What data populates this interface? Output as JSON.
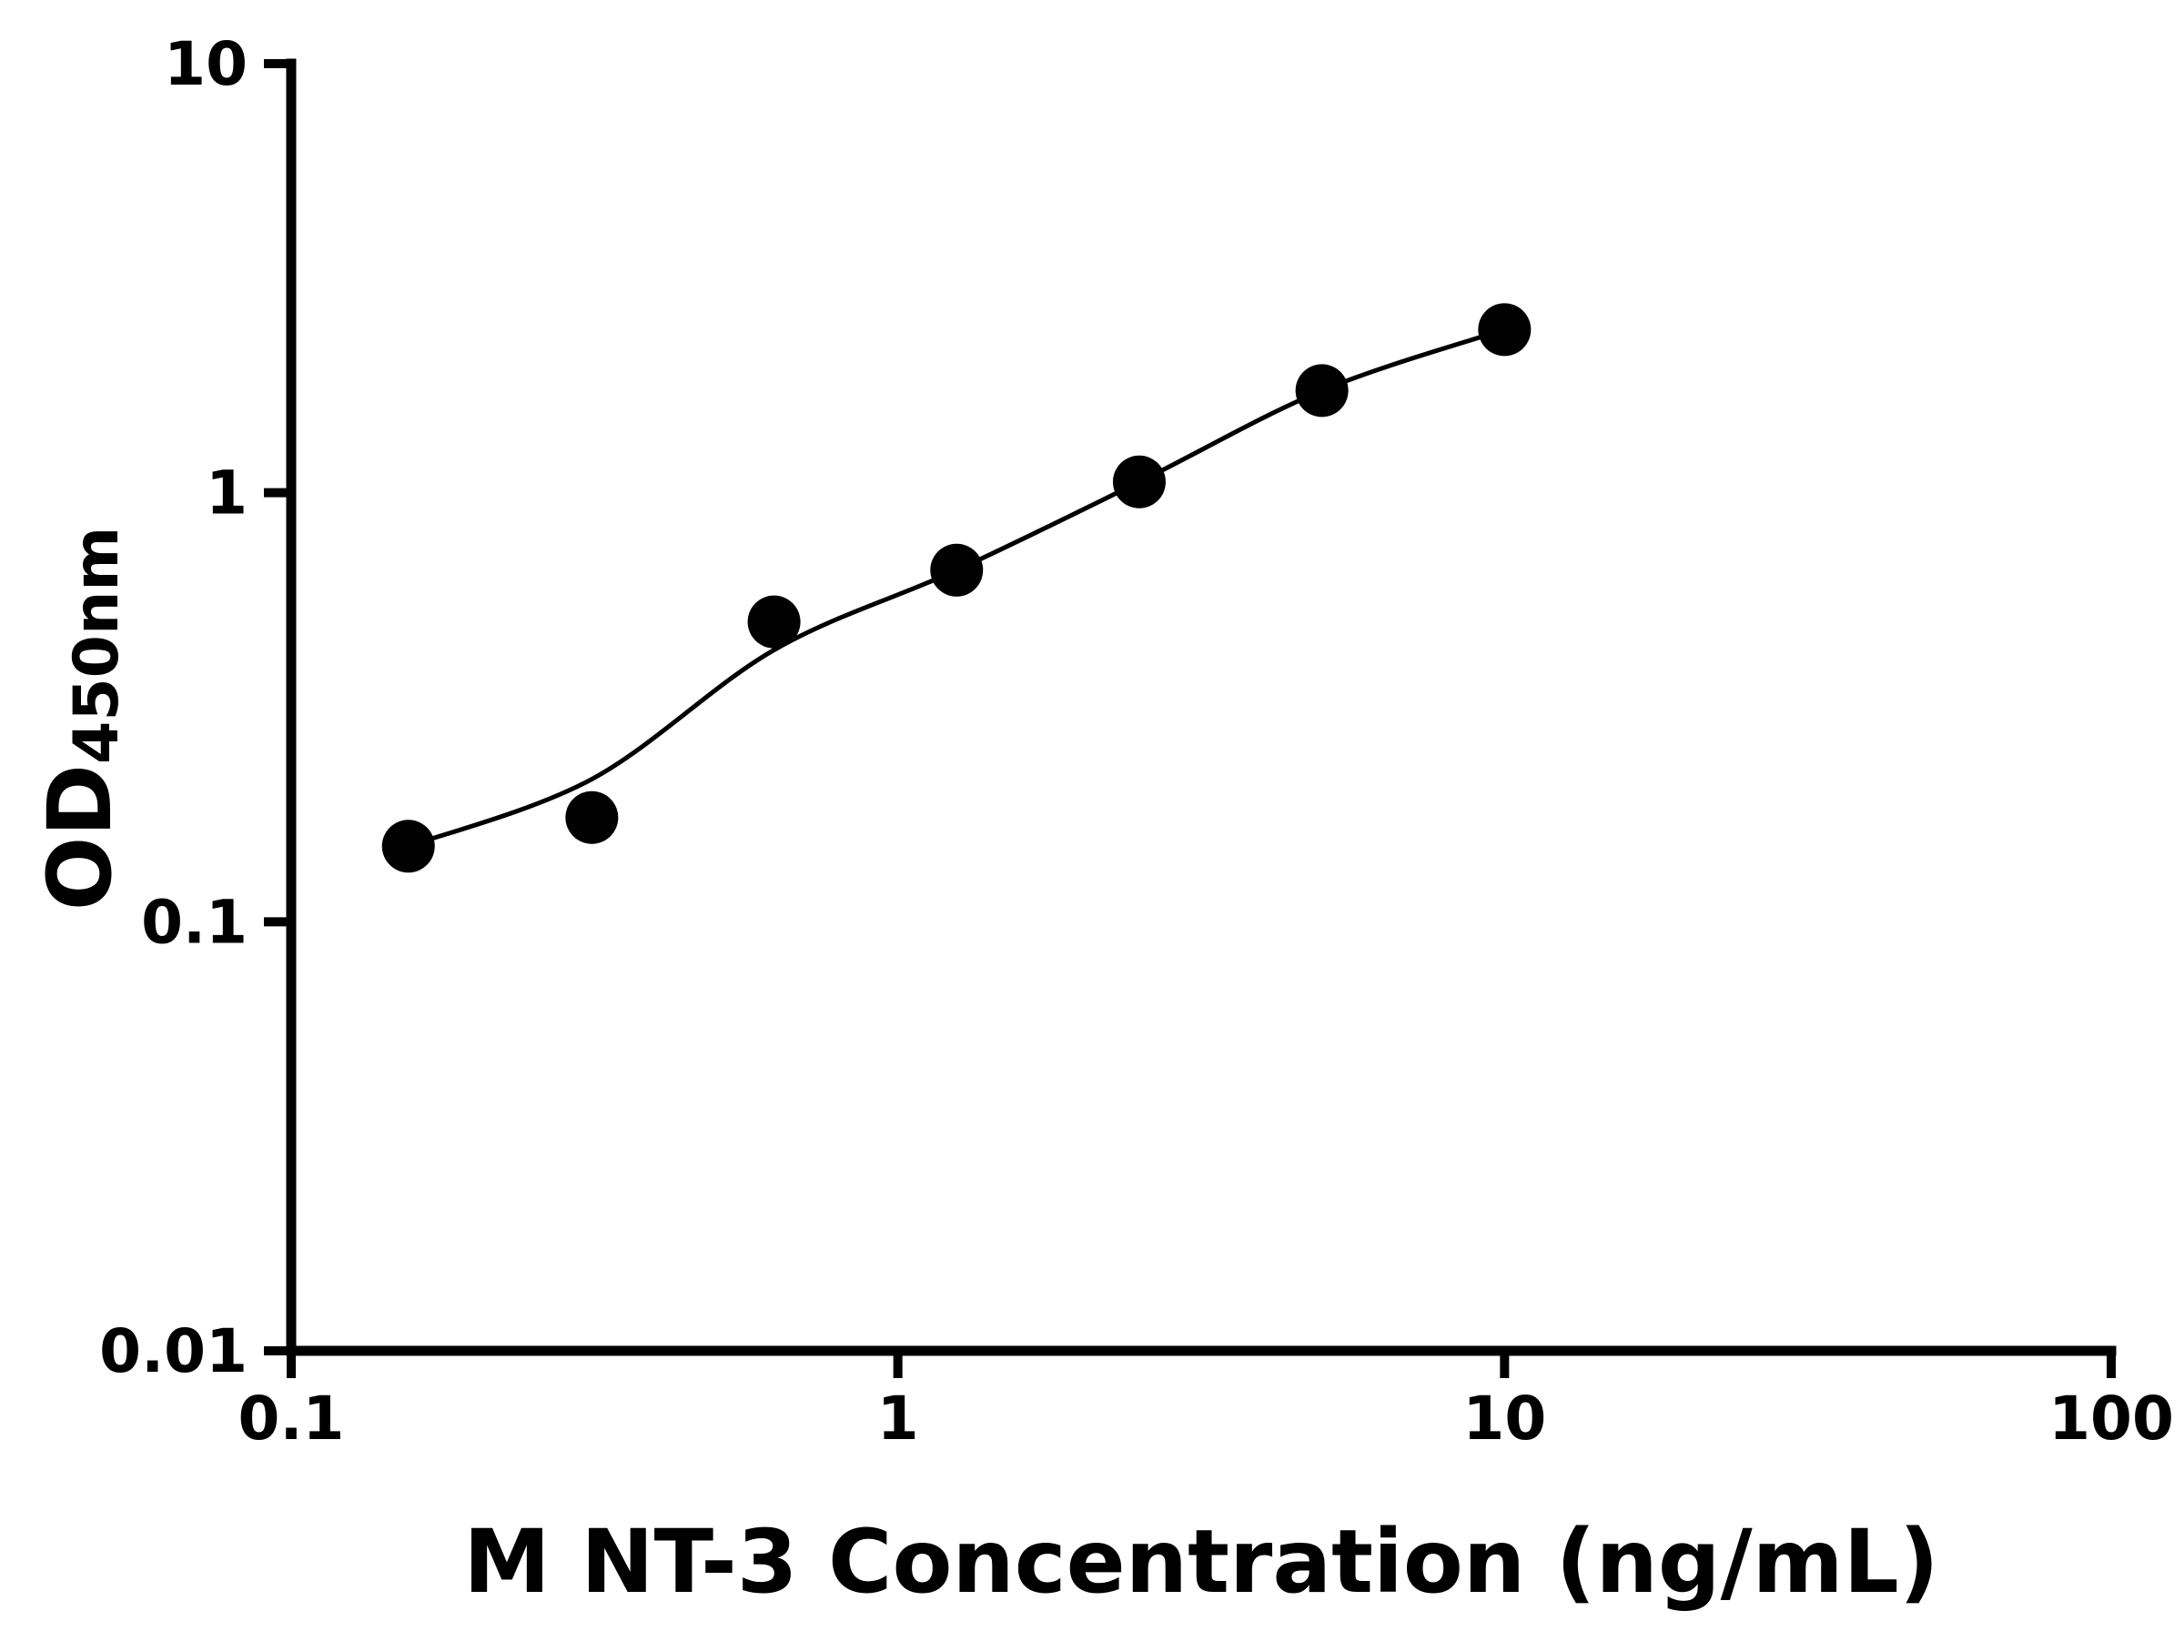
{
  "chart_data": {
    "type": "scatter",
    "title": "",
    "xlabel": "M NT-3 Concentration (ng/mL)",
    "ylabel_main": "OD",
    "ylabel_sub": "450nm",
    "x_scale": "log",
    "y_scale": "log",
    "xlim": [
      0.1,
      100
    ],
    "ylim": [
      0.01,
      10
    ],
    "grid": false,
    "legend": false,
    "marker_color": "#000000",
    "line_color": "#000000",
    "x_ticks": [
      {
        "value": 0.1,
        "label": "0.1"
      },
      {
        "value": 1,
        "label": "1"
      },
      {
        "value": 10,
        "label": "10"
      },
      {
        "value": 100,
        "label": "100"
      }
    ],
    "y_ticks": [
      {
        "value": 0.01,
        "label": "0.01"
      },
      {
        "value": 0.1,
        "label": "0.1"
      },
      {
        "value": 1,
        "label": "1"
      },
      {
        "value": 10,
        "label": "10"
      }
    ],
    "series": [
      {
        "x": [
          0.156,
          0.313,
          0.625,
          1.25,
          2.5,
          5,
          10
        ],
        "y": [
          0.15,
          0.175,
          0.5,
          0.66,
          1.06,
          1.73,
          2.4
        ]
      }
    ],
    "fit_curve": {
      "x": [
        0.156,
        0.313,
        0.625,
        1.25,
        2.5,
        5,
        10
      ],
      "y": [
        0.15,
        0.215,
        0.43,
        0.66,
        1.06,
        1.73,
        2.4
      ]
    }
  }
}
